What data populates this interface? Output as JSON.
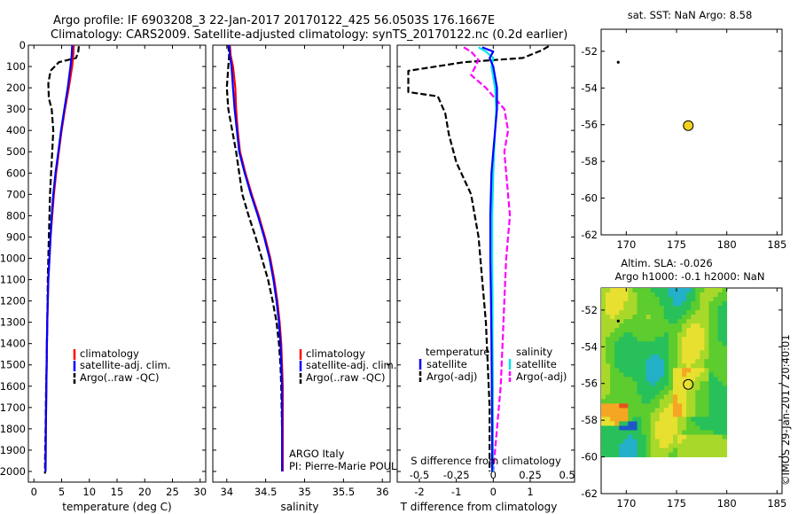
{
  "header": {
    "title_line1": "Argo profile: IF 6903208_3 22-Jan-2017 20170122_425 56.0503S 176.1667E",
    "title_line2": "Climatology: CARS2009. Satellite-adjusted climatology: synTS_20170122.nc (0.2d earlier)"
  },
  "footer": {
    "watermark": "©IMOS 29-Jan-2017 20:40:01",
    "argo_info_line1": "ARGO Italy",
    "argo_info_line2": "PI: Pierre-Marie POULAIN"
  },
  "colors": {
    "climatology": "#ff0000",
    "satellite": "#0000ff",
    "argo": "#000000",
    "satellite_salinity": "#00e5e5",
    "argo_adj_salinity": "#ff00ff",
    "float_marker": "#f2d21e"
  },
  "chart_data": [
    {
      "id": "temperature",
      "type": "line",
      "xlabel": "temperature (deg C)",
      "ylabel": "",
      "xlim": [
        -1,
        31
      ],
      "ylim": [
        2050,
        0
      ],
      "xticks": [
        0,
        5,
        10,
        15,
        20,
        25,
        30
      ],
      "yticks": [
        0,
        100,
        200,
        300,
        400,
        500,
        600,
        700,
        800,
        900,
        1000,
        1100,
        1200,
        1300,
        1400,
        1500,
        1600,
        1700,
        1800,
        1900,
        2000
      ],
      "legend": [
        "climatology",
        "satellite-adj. clim.",
        "Argo(..raw -QC)"
      ],
      "legend_position": "lower-right",
      "series": [
        {
          "name": "climatology",
          "style": "solid",
          "x": [
            7.2,
            7.1,
            6.9,
            6.3,
            5.6,
            5.0,
            4.5,
            4.0,
            3.6,
            3.3,
            3.0,
            2.8,
            2.6,
            2.5,
            2.4,
            2.35,
            2.3,
            2.25,
            2.2,
            2.15,
            2.1
          ],
          "y": [
            0,
            50,
            100,
            200,
            300,
            400,
            500,
            600,
            700,
            800,
            900,
            1000,
            1100,
            1200,
            1300,
            1400,
            1500,
            1600,
            1700,
            1800,
            2000
          ]
        },
        {
          "name": "satellite-adj. clim.",
          "style": "solid",
          "x": [
            6.9,
            6.8,
            6.6,
            6.1,
            5.5,
            4.9,
            4.4,
            3.9,
            3.5,
            3.2,
            3.0,
            2.8,
            2.6,
            2.5,
            2.4,
            2.35,
            2.3,
            2.25,
            2.2,
            2.15,
            2.1
          ],
          "y": [
            0,
            50,
            100,
            200,
            300,
            400,
            500,
            600,
            700,
            800,
            900,
            1000,
            1100,
            1200,
            1300,
            1400,
            1500,
            1600,
            1700,
            1800,
            2000
          ]
        },
        {
          "name": "Argo(..raw -QC)",
          "style": "dashed",
          "x": [
            8.1,
            8.0,
            7.6,
            4.5,
            3.0,
            2.6,
            2.7,
            3.2,
            3.5,
            3.3,
            3.1,
            2.9,
            2.8,
            2.7,
            2.6,
            2.5,
            2.45,
            2.4,
            2.35,
            2.3,
            2.2,
            2.1,
            2.0,
            2.0
          ],
          "y": [
            5,
            30,
            60,
            80,
            120,
            180,
            250,
            300,
            400,
            500,
            600,
            700,
            800,
            900,
            1000,
            1100,
            1200,
            1300,
            1400,
            1500,
            1600,
            1800,
            1950,
            2010
          ]
        }
      ]
    },
    {
      "id": "salinity",
      "type": "line",
      "xlabel": "salinity",
      "ylabel": "",
      "xlim": [
        33.82,
        36.1
      ],
      "ylim": [
        2050,
        0
      ],
      "xticks": [
        34,
        34.5,
        35,
        35.5,
        36
      ],
      "legend": [
        "climatology",
        "satellite-adj. clim.",
        "Argo(..raw -QC)"
      ],
      "legend_position": "lower-right",
      "series": [
        {
          "name": "climatology",
          "style": "solid",
          "x": [
            34.04,
            34.05,
            34.08,
            34.11,
            34.12,
            34.14,
            34.17,
            34.24,
            34.32,
            34.41,
            34.49,
            34.56,
            34.61,
            34.65,
            34.68,
            34.7,
            34.71,
            34.72,
            34.72,
            34.72
          ],
          "y": [
            0,
            50,
            100,
            200,
            300,
            400,
            500,
            600,
            700,
            800,
            900,
            1000,
            1100,
            1200,
            1300,
            1400,
            1500,
            1600,
            1800,
            2000
          ]
        },
        {
          "name": "satellite-adj. clim.",
          "style": "solid",
          "x": [
            34.03,
            34.04,
            34.06,
            34.08,
            34.1,
            34.13,
            34.16,
            34.23,
            34.31,
            34.4,
            34.48,
            34.55,
            34.6,
            34.64,
            34.67,
            34.69,
            34.7,
            34.71,
            34.71,
            34.71
          ],
          "y": [
            0,
            50,
            100,
            200,
            300,
            400,
            500,
            600,
            700,
            800,
            900,
            1000,
            1100,
            1200,
            1300,
            1400,
            1500,
            1600,
            1800,
            2000
          ]
        },
        {
          "name": "Argo(..raw -QC)",
          "style": "dashed",
          "x": [
            34.02,
            34.03,
            34.02,
            34.0,
            34.02,
            34.07,
            34.12,
            34.16,
            34.2,
            34.28,
            34.37,
            34.45,
            34.53,
            34.59,
            34.64,
            34.67,
            34.69,
            34.7,
            34.71,
            34.72
          ],
          "y": [
            0,
            50,
            100,
            200,
            300,
            400,
            500,
            600,
            700,
            800,
            900,
            1000,
            1100,
            1200,
            1300,
            1400,
            1500,
            1600,
            1800,
            2000
          ]
        }
      ]
    },
    {
      "id": "differences",
      "type": "line",
      "xlabel_bottom": "T difference from climatology",
      "xlabel_top": "S difference from climatology",
      "xlim": [
        -2.6,
        2.2
      ],
      "ylim": [
        2050,
        0
      ],
      "xticks_T": [
        -2,
        -1,
        0,
        1
      ],
      "xtick_labels_S": [
        "-0.5",
        "-0.25",
        "0",
        "0.25",
        "0.5"
      ],
      "legend_temperature_title": "temperature",
      "legend_salinity_title": "salinity",
      "legend": [
        "satellite",
        "Argo(-adj)",
        "satellite",
        "Argo(-adj)"
      ],
      "series": [
        {
          "name": "satellite",
          "group": "temperature",
          "style": "solid",
          "x": [
            -0.3,
            0.0,
            -0.1,
            0.0,
            0.1,
            0.1,
            0.05,
            0.0,
            -0.05,
            -0.08,
            -0.08,
            -0.06,
            -0.05,
            -0.04,
            -0.03,
            -0.03,
            -0.03
          ],
          "y": [
            10,
            30,
            60,
            100,
            200,
            300,
            400,
            500,
            600,
            800,
            1000,
            1200,
            1400,
            1600,
            1800,
            1950,
            2000
          ]
        },
        {
          "name": "Argo(-adj)",
          "group": "temperature",
          "style": "dashed",
          "x": [
            1.5,
            1.3,
            0.8,
            -0.8,
            -2.3,
            -2.3,
            -1.5,
            -1.3,
            -1.2,
            -1.0,
            -0.6,
            -0.4,
            -0.3,
            -0.2,
            -0.15,
            -0.1,
            -0.1,
            -0.1,
            -0.1,
            -0.1
          ],
          "y": [
            5,
            25,
            60,
            80,
            120,
            220,
            240,
            320,
            420,
            550,
            700,
            900,
            1100,
            1300,
            1500,
            1700,
            1800,
            1900,
            1950,
            2000
          ]
        },
        {
          "name": "satellite",
          "group": "salinity",
          "style": "solid",
          "x": [
            -0.4,
            -0.2,
            0.0,
            -0.05,
            0.05,
            0.08,
            0.05,
            0.02,
            0.0,
            -0.03,
            -0.03,
            -0.02,
            -0.02,
            -0.01,
            -0.01,
            -0.01,
            0.0
          ],
          "y": [
            10,
            30,
            60,
            100,
            200,
            300,
            400,
            500,
            600,
            800,
            1000,
            1200,
            1400,
            1600,
            1800,
            1950,
            2000
          ]
        },
        {
          "name": "Argo(-adj)",
          "group": "salinity",
          "style": "dashed",
          "x": [
            -0.8,
            -0.6,
            -0.4,
            -0.6,
            -0.2,
            0.3,
            0.4,
            0.3,
            0.35,
            0.4,
            0.45,
            0.35,
            0.3,
            0.25,
            0.2,
            0.15,
            0.1,
            0.05,
            0.0
          ],
          "y": [
            10,
            30,
            70,
            140,
            200,
            300,
            400,
            500,
            600,
            700,
            800,
            1000,
            1200,
            1400,
            1600,
            1700,
            1800,
            1900,
            2000
          ]
        }
      ]
    },
    {
      "id": "sst_map",
      "type": "scatter",
      "title": "sat. SST: NaN Argo: 8.58",
      "xlim": [
        167.5,
        185.5
      ],
      "ylim": [
        -62,
        -50.8
      ],
      "xticks": [
        170,
        175,
        180,
        185
      ],
      "yticks": [
        -52,
        -54,
        -56,
        -58,
        -60,
        -62
      ],
      "points": [
        {
          "name": "previous position",
          "x": 169.2,
          "y": -52.6
        },
        {
          "name": "float position",
          "x": 176.17,
          "y": -56.05
        }
      ]
    },
    {
      "id": "sla_map",
      "type": "heatmap",
      "title_line1": "Altim. SLA: -0.026",
      "title_line2": "Argo h1000: -0.1 h2000: NaN",
      "xlim": [
        167.5,
        185.5
      ],
      "ylim": [
        -62,
        -50.8
      ],
      "xticks": [
        170,
        175,
        180,
        185
      ],
      "yticks": [
        -52,
        -54,
        -56,
        -58,
        -60,
        -62
      ],
      "field_extent_lon": [
        167.5,
        180
      ],
      "field_extent_lat": [
        -60,
        -50.8
      ],
      "points": [
        {
          "name": "previous position",
          "x": 169.2,
          "y": -52.6
        },
        {
          "name": "float position",
          "x": 176.17,
          "y": -56.05
        }
      ]
    }
  ]
}
